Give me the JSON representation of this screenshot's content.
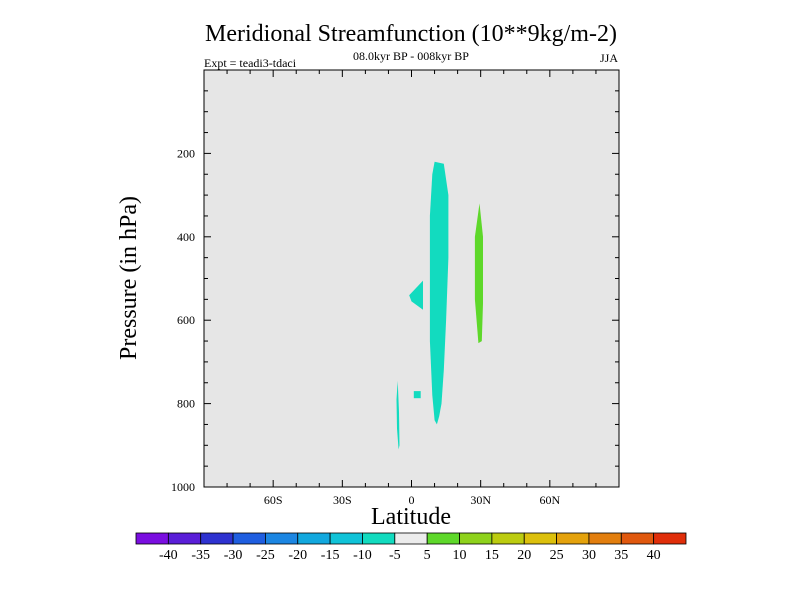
{
  "chart_data": {
    "type": "contour",
    "title": "Meridional Streamfunction (10**9kg/m-2)",
    "subtitle": "08.0kyr BP - 008kyr BP",
    "left_label": "Expt = teadi3-tdaci",
    "right_label": "JJA",
    "xlabel": "Latitude",
    "ylabel": "Pressure (in hPa)",
    "xlim": [
      -90,
      90
    ],
    "ylim": [
      1000,
      0
    ],
    "x_ticks": [
      {
        "value": -60,
        "label": "60S"
      },
      {
        "value": -30,
        "label": "30S"
      },
      {
        "value": 0,
        "label": "0"
      },
      {
        "value": 30,
        "label": "30N"
      },
      {
        "value": 60,
        "label": "60N"
      }
    ],
    "y_ticks": [
      {
        "value": 200,
        "label": "200"
      },
      {
        "value": 400,
        "label": "400"
      },
      {
        "value": 600,
        "label": "600"
      },
      {
        "value": 800,
        "label": "800"
      },
      {
        "value": 1000,
        "label": "1000"
      }
    ],
    "background_color": "#e6e6e6",
    "colorbar": {
      "colors": [
        "#7a0ee0",
        "#5a1ed8",
        "#2e32d0",
        "#1f5ee0",
        "#1c86e2",
        "#12a8de",
        "#10c3d8",
        "#12dbbf",
        "#ececec",
        "#5ed82a",
        "#8ed21c",
        "#bccc10",
        "#dcc00c",
        "#e4a20c",
        "#e27e0e",
        "#e0580e",
        "#e02e0a"
      ],
      "labels": [
        "-40",
        "-35",
        "-30",
        "-25",
        "-20",
        "-15",
        "-10",
        "-5",
        "5",
        "10",
        "15",
        "20",
        "25",
        "30",
        "35",
        "40"
      ]
    },
    "regions": [
      {
        "level": "-10 to -5",
        "color": "#12dbbf",
        "points": [
          [
            10,
            220
          ],
          [
            14,
            225
          ],
          [
            16,
            300
          ],
          [
            16,
            450
          ],
          [
            15,
            600
          ],
          [
            14,
            720
          ],
          [
            13,
            800
          ],
          [
            12,
            830
          ],
          [
            11,
            850
          ],
          [
            10,
            840
          ],
          [
            9,
            780
          ],
          [
            8,
            650
          ],
          [
            8,
            500
          ],
          [
            8,
            350
          ],
          [
            9,
            250
          ]
        ]
      },
      {
        "level": "-10 to -5",
        "color": "#12dbbf",
        "points": [
          [
            5,
            505
          ],
          [
            5,
            575
          ],
          [
            0,
            555
          ],
          [
            -1,
            540
          ]
        ]
      },
      {
        "level": "-10 to -5",
        "color": "#12dbbf",
        "points": [
          [
            1,
            770
          ],
          [
            4,
            770
          ],
          [
            4,
            787
          ],
          [
            1,
            787
          ]
        ]
      },
      {
        "level": "-10 to -5",
        "color": "#12dbbf",
        "points": [
          [
            -6,
            745
          ],
          [
            -5.4,
            820
          ],
          [
            -5.2,
            900
          ],
          [
            -5.6,
            910
          ],
          [
            -6.3,
            860
          ],
          [
            -6.5,
            790
          ]
        ]
      },
      {
        "level": "5 to 10",
        "color": "#5ed82a",
        "points": [
          [
            29.5,
            320
          ],
          [
            31,
            400
          ],
          [
            31,
            560
          ],
          [
            30.5,
            650
          ],
          [
            29,
            655
          ],
          [
            27.5,
            550
          ],
          [
            27.5,
            400
          ]
        ]
      }
    ]
  }
}
